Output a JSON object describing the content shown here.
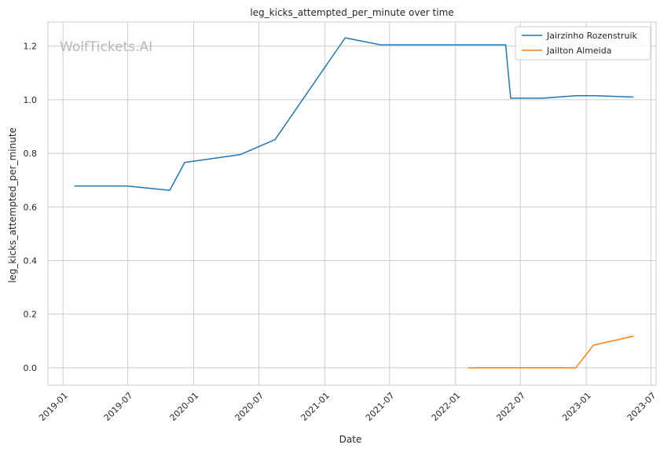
{
  "chart_data": {
    "type": "line",
    "title": "leg_kicks_attempted_per_minute over time",
    "xlabel": "Date",
    "ylabel": "leg_kicks_attempted_per_minute",
    "watermark": "WolfTickets.AI",
    "xlim": [
      "2018-11-20",
      "2023-07-15"
    ],
    "ylim": [
      -0.065,
      1.29
    ],
    "x_ticks": [
      "2019-01",
      "2019-07",
      "2020-01",
      "2020-07",
      "2021-01",
      "2021-07",
      "2022-01",
      "2022-07",
      "2023-01",
      "2023-07"
    ],
    "y_ticks": [
      0.0,
      0.2,
      0.4,
      0.6,
      0.8,
      1.0,
      1.2
    ],
    "y_tick_labels": [
      "0.0",
      "0.2",
      "0.4",
      "0.6",
      "0.8",
      "1.0",
      "1.2"
    ],
    "grid": true,
    "legend": "top-right",
    "series": [
      {
        "name": "Jairzinho Rozenstruik",
        "color": "#1f77b4",
        "points": [
          {
            "x": "2019-02-02",
            "y": 0.678
          },
          {
            "x": "2019-06-29",
            "y": 0.678
          },
          {
            "x": "2019-10-26",
            "y": 0.662
          },
          {
            "x": "2019-12-07",
            "y": 0.766
          },
          {
            "x": "2020-05-09",
            "y": 0.795
          },
          {
            "x": "2020-08-15",
            "y": 0.851
          },
          {
            "x": "2021-02-27",
            "y": 1.231
          },
          {
            "x": "2021-06-05",
            "y": 1.205
          },
          {
            "x": "2022-05-21",
            "y": 1.205
          },
          {
            "x": "2022-06-04",
            "y": 1.006
          },
          {
            "x": "2022-09-03",
            "y": 1.006
          },
          {
            "x": "2022-12-03",
            "y": 1.015
          },
          {
            "x": "2023-01-28",
            "y": 1.015
          },
          {
            "x": "2023-05-13",
            "y": 1.01
          }
        ]
      },
      {
        "name": "Jailton Almeida",
        "color": "#ff7f0e",
        "points": [
          {
            "x": "2022-02-05",
            "y": 0.0
          },
          {
            "x": "2022-12-03",
            "y": 0.0
          },
          {
            "x": "2023-01-21",
            "y": 0.084
          },
          {
            "x": "2023-05-13",
            "y": 0.118
          }
        ]
      }
    ]
  }
}
